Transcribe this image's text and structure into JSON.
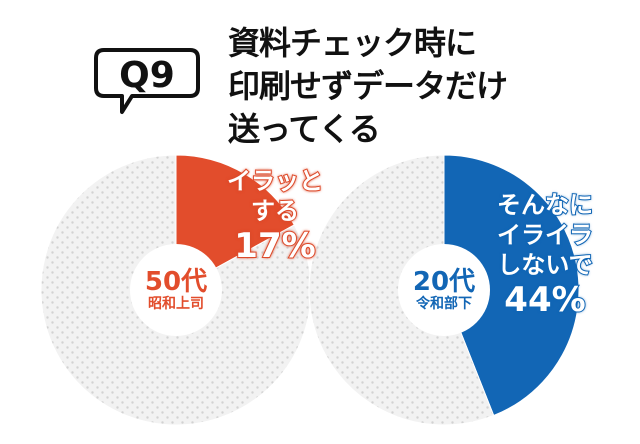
{
  "badge": {
    "text": "Q9"
  },
  "title": {
    "lines": [
      "資料チェック時に",
      "印刷せずデータだけ",
      "送ってくる"
    ]
  },
  "chart_data": [
    {
      "type": "pie",
      "group": "50代",
      "group_sub": "昭和上司",
      "highlight_label_lines": [
        "イラッと",
        "する"
      ],
      "highlight_value": 17,
      "highlight_value_text": "17%",
      "values": [
        17,
        83
      ],
      "colors": {
        "highlight": "#e24d2c",
        "rest": "#f0f0f0",
        "center_text": "#e24d2c"
      }
    },
    {
      "type": "pie",
      "group": "20代",
      "group_sub": "令和部下",
      "highlight_label_lines": [
        "そんなに",
        "イライラ",
        "しないで"
      ],
      "highlight_value": 44,
      "highlight_value_text": "44%",
      "values": [
        44,
        56
      ],
      "colors": {
        "highlight": "#1266b5",
        "rest": "#f0f0f0",
        "center_text": "#1266b5"
      }
    }
  ]
}
